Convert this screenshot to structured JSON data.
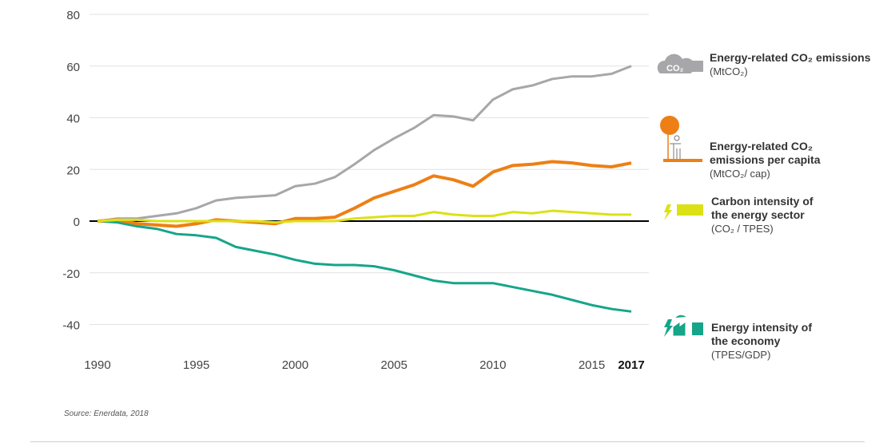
{
  "chart_data": {
    "type": "line",
    "x": [
      1990,
      1991,
      1992,
      1993,
      1994,
      1995,
      1996,
      1997,
      1998,
      1999,
      2000,
      2001,
      2002,
      2003,
      2004,
      2005,
      2006,
      2007,
      2008,
      2009,
      2010,
      2011,
      2012,
      2013,
      2014,
      2015,
      2016,
      2017
    ],
    "xticks": [
      "1990",
      "1995",
      "2000",
      "2005",
      "2010",
      "2015",
      "2017"
    ],
    "yticks": [
      "80",
      "60",
      "40",
      "20",
      "0",
      "-20",
      "-40"
    ],
    "ylim": [
      -40,
      80
    ],
    "grid": true,
    "legend_placement": "right",
    "series": [
      {
        "name": "Energy-related CO₂ emissions",
        "unit": "(MtCO₂)",
        "color": "#a7a6a8",
        "icon": "co2-cloud-icon",
        "values": [
          0,
          1,
          1,
          2,
          3,
          5,
          8,
          9,
          9.5,
          10,
          13.5,
          14.5,
          17,
          22,
          27.5,
          32,
          36,
          41,
          40.5,
          39,
          47,
          51,
          52.5,
          55,
          56,
          56,
          57,
          60
        ]
      },
      {
        "name": "Energy-related CO₂ emissions per capita",
        "unit": "(MtCO₂/ cap)",
        "color": "#ee7f14",
        "icon": "person-balloon-icon",
        "values": [
          0,
          0.5,
          -1,
          -1.5,
          -2,
          -1,
          0.5,
          0,
          -0.5,
          -1,
          1,
          1,
          1.5,
          5,
          9,
          11.5,
          14,
          17.5,
          16,
          13.5,
          19,
          21.5,
          22,
          23,
          22.5,
          21.5,
          21,
          22.5
        ]
      },
      {
        "name": "Carbon intensity of the energy sector",
        "unit": "(CO₂ / TPES)",
        "color": "#dce116",
        "icon": "lightning-icon",
        "values": [
          0,
          0.5,
          0.5,
          0,
          0,
          0,
          0,
          0,
          0,
          -0.5,
          0,
          0,
          0,
          1,
          1.5,
          2,
          2,
          3.5,
          2.5,
          2,
          2,
          3.5,
          3,
          4,
          3.5,
          3,
          2.5,
          2.5
        ]
      },
      {
        "name": "Energy intensity of the economy",
        "unit": "(TPES/GDP)",
        "color": "#16a589",
        "icon": "factory-lightning-icon",
        "values": [
          0,
          -0.5,
          -2,
          -3,
          -5,
          -5.5,
          -6.5,
          -10,
          -11.5,
          -13,
          -15,
          -16.5,
          -17,
          -17,
          -17.5,
          -19,
          -21,
          -23,
          -24,
          -24,
          -24,
          -25.5,
          -27,
          -28.5,
          -30.5,
          -32.5,
          -34,
          -35
        ]
      }
    ],
    "source": "Source: Enerdata, 2018"
  }
}
